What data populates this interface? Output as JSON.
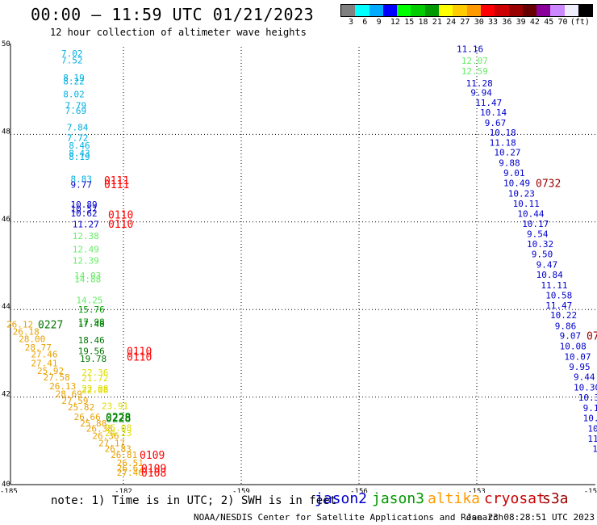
{
  "header": {
    "title": "00:00 – 11:59 UTC 01/21/2023",
    "subtitle": "12 hour collection of altimeter wave heights"
  },
  "legend": {
    "unit": "(ft)",
    "colors": [
      "#808080",
      "#00ffff",
      "#00aaff",
      "#0000ff",
      "#00ff00",
      "#00cc00",
      "#009900",
      "#ffff00",
      "#ffcc00",
      "#ff9900",
      "#ff0000",
      "#cc0000",
      "#990000",
      "#660000",
      "#880099",
      "#cc88ff",
      "#eeeeff",
      "#000000"
    ],
    "labels": [
      "3",
      "6",
      "9",
      "12",
      "15",
      "18",
      "21",
      "24",
      "27",
      "30",
      "33",
      "36",
      "39",
      "42",
      "45",
      "70"
    ]
  },
  "chart_data": {
    "type": "scatter",
    "title": "00:00 – 11:59 UTC 01/21/2023",
    "subtitle": "12 hour collection of altimeter wave heights",
    "x_axis": {
      "ticks": [
        "-185",
        "-182",
        "-159",
        "-156",
        "-153",
        "-15"
      ],
      "grid": true
    },
    "y_axis": {
      "ticks": [
        "50",
        "48",
        "46",
        "44",
        "42",
        "40"
      ],
      "range": [
        40,
        50
      ],
      "grid": true
    },
    "palette": {
      "cyan": "#00b0e0",
      "blue": "#0000cc",
      "lightgreen": "#66ee66",
      "green": "#009900",
      "darkgreen": "#007700",
      "yellow": "#dddd00",
      "orange": "#e8a000",
      "red": "#ff0000",
      "darkred": "#990000"
    },
    "tracks": [
      {
        "name": "left-north",
        "points": [
          {
            "lat": 49.85,
            "label": "7.02",
            "color": "cyan",
            "col": 0
          },
          {
            "lat": 49.7,
            "label": "7.52",
            "color": "cyan",
            "col": 0
          },
          {
            "lat": 49.3,
            "label": "8.19",
            "color": "cyan",
            "col": 1
          },
          {
            "lat": 49.22,
            "label": "8.22",
            "color": "cyan",
            "col": 1
          },
          {
            "lat": 48.92,
            "label": "8.02",
            "color": "cyan",
            "col": 1
          },
          {
            "lat": 48.66,
            "label": "7.79",
            "color": "cyan",
            "col": 2
          },
          {
            "lat": 48.54,
            "label": "7.69",
            "color": "cyan",
            "col": 2
          },
          {
            "lat": 48.16,
            "label": "7.84",
            "color": "cyan",
            "col": 3
          },
          {
            "lat": 47.92,
            "label": "7.72",
            "color": "cyan",
            "col": 3
          },
          {
            "lat": 47.75,
            "label": "8.46",
            "color": "cyan",
            "col": 4
          },
          {
            "lat": 47.57,
            "label": "8.43",
            "color": "cyan",
            "col": 4
          },
          {
            "lat": 47.49,
            "label": "8.19",
            "color": "cyan",
            "col": 4
          },
          {
            "lat": 46.98,
            "label": "8.83",
            "color": "cyan",
            "col": 5
          },
          {
            "lat": 46.85,
            "label": "9.77",
            "color": "blue",
            "col": 5
          },
          {
            "lat": 46.4,
            "label": "10.89",
            "color": "blue",
            "col": 5
          },
          {
            "lat": 46.3,
            "label": "10.57",
            "color": "blue",
            "col": 5
          },
          {
            "lat": 46.2,
            "label": "10.62",
            "color": "blue",
            "col": 5
          },
          {
            "lat": 45.95,
            "label": "11.27",
            "color": "blue",
            "col": 6
          },
          {
            "lat": 45.68,
            "label": "12.38",
            "color": "lightgreen",
            "col": 6
          },
          {
            "lat": 45.38,
            "label": "12.49",
            "color": "lightgreen",
            "col": 6
          },
          {
            "lat": 45.12,
            "label": "12.39",
            "color": "lightgreen",
            "col": 6
          },
          {
            "lat": 44.78,
            "label": "14.03",
            "color": "lightgreen",
            "col": 7
          },
          {
            "lat": 44.7,
            "label": "14.88",
            "color": "lightgreen",
            "col": 7
          },
          {
            "lat": 44.22,
            "label": "14.25",
            "color": "lightgreen",
            "col": 8
          },
          {
            "lat": 44.0,
            "label": "15.76",
            "color": "green",
            "col": 9
          },
          {
            "lat": 43.72,
            "label": "17.98",
            "color": "green",
            "col": 9
          },
          {
            "lat": 43.67,
            "label": "17.48",
            "color": "darkgreen",
            "col": 9
          },
          {
            "lat": 43.3,
            "label": "18.46",
            "color": "darkgreen",
            "col": 9
          },
          {
            "lat": 43.05,
            "label": "19.56",
            "color": "darkgreen",
            "col": 9
          },
          {
            "lat": 42.88,
            "label": "19.78",
            "color": "darkgreen",
            "col": 10
          },
          {
            "lat": 42.56,
            "label": "22.36",
            "color": "yellow",
            "col": 11
          },
          {
            "lat": 42.44,
            "label": "21.72",
            "color": "yellow",
            "col": 11
          },
          {
            "lat": 42.2,
            "label": "22.08",
            "color": "yellow",
            "col": 11
          },
          {
            "lat": 42.16,
            "label": "22.06",
            "color": "yellow",
            "col": 11
          }
        ]
      },
      {
        "name": "left-south",
        "points": [
          {
            "lat": 43.66,
            "label": "26.12",
            "color": "orange",
            "col": 0
          },
          {
            "lat": 43.5,
            "label": "26.18",
            "color": "orange",
            "col": 1
          },
          {
            "lat": 43.33,
            "label": "28.00",
            "color": "orange",
            "col": 2
          },
          {
            "lat": 43.14,
            "label": "28.77",
            "color": "orange",
            "col": 3
          },
          {
            "lat": 42.98,
            "label": "27.46",
            "color": "orange",
            "col": 4
          },
          {
            "lat": 42.78,
            "label": "27.41",
            "color": "orange",
            "col": 4
          },
          {
            "lat": 42.6,
            "label": "25.92",
            "color": "orange",
            "col": 5
          },
          {
            "lat": 42.45,
            "label": "27.58",
            "color": "orange",
            "col": 6
          },
          {
            "lat": 42.25,
            "label": "26.13",
            "color": "orange",
            "col": 7
          },
          {
            "lat": 42.08,
            "label": "28.69",
            "color": "orange",
            "col": 8
          },
          {
            "lat": 41.92,
            "label": "27.59",
            "color": "orange",
            "col": 9
          },
          {
            "lat": 41.77,
            "label": "25.82",
            "color": "orange",
            "col": 10
          },
          {
            "lat": 41.55,
            "label": "26.66",
            "color": "orange",
            "col": 11
          },
          {
            "lat": 41.4,
            "label": "25.88",
            "color": "orange",
            "col": 12
          },
          {
            "lat": 41.28,
            "label": "26.38",
            "color": "orange",
            "col": 13
          },
          {
            "lat": 41.12,
            "label": "26.36",
            "color": "orange",
            "col": 14
          },
          {
            "lat": 40.95,
            "label": "27.17",
            "color": "orange",
            "col": 15
          },
          {
            "lat": 40.82,
            "label": "26.83",
            "color": "orange",
            "col": 16
          },
          {
            "lat": 40.68,
            "label": "26.81",
            "color": "orange",
            "col": 17
          },
          {
            "lat": 40.5,
            "label": "26.51",
            "color": "orange",
            "col": 18
          },
          {
            "lat": 40.38,
            "label": "26.62",
            "color": "orange",
            "col": 18
          },
          {
            "lat": 40.28,
            "label": "27.46",
            "color": "orange",
            "col": 18
          }
        ]
      },
      {
        "name": "left-yellow-lower",
        "points": [
          {
            "lat": 41.8,
            "label": "23.91",
            "color": "yellow",
            "col": 0
          },
          {
            "lat": 41.3,
            "label": "25.08",
            "color": "yellow",
            "col": 1
          },
          {
            "lat": 41.18,
            "label": "24.23",
            "color": "yellow",
            "col": 1
          }
        ]
      },
      {
        "name": "right-track",
        "points": [
          {
            "lat": 49.95,
            "label": "11.16",
            "color": "blue",
            "col": 0
          },
          {
            "lat": 49.69,
            "label": "12.07",
            "color": "lightgreen",
            "col": 1
          },
          {
            "lat": 49.45,
            "label": "12.59",
            "color": "lightgreen",
            "col": 1
          },
          {
            "lat": 49.17,
            "label": "11.28",
            "color": "blue",
            "col": 2
          },
          {
            "lat": 48.96,
            "label": "9.94",
            "color": "blue",
            "col": 3
          },
          {
            "lat": 48.73,
            "label": "11.47",
            "color": "blue",
            "col": 4
          },
          {
            "lat": 48.51,
            "label": "10.14",
            "color": "blue",
            "col": 5
          },
          {
            "lat": 48.27,
            "label": "9.67",
            "color": "blue",
            "col": 6
          },
          {
            "lat": 48.04,
            "label": "10.18",
            "color": "blue",
            "col": 7
          },
          {
            "lat": 47.81,
            "label": "11.18",
            "color": "blue",
            "col": 7
          },
          {
            "lat": 47.59,
            "label": "10.27",
            "color": "blue",
            "col": 8
          },
          {
            "lat": 47.35,
            "label": "9.88",
            "color": "blue",
            "col": 9
          },
          {
            "lat": 47.12,
            "label": "9.01",
            "color": "blue",
            "col": 10
          },
          {
            "lat": 46.89,
            "label": "10.49",
            "color": "blue",
            "col": 10
          },
          {
            "lat": 46.65,
            "label": "10.23",
            "color": "blue",
            "col": 11
          },
          {
            "lat": 46.42,
            "label": "10.11",
            "color": "blue",
            "col": 12
          },
          {
            "lat": 46.19,
            "label": "10.44",
            "color": "blue",
            "col": 13
          },
          {
            "lat": 45.96,
            "label": "10.17",
            "color": "blue",
            "col": 14
          },
          {
            "lat": 45.73,
            "label": "9.54",
            "color": "blue",
            "col": 15
          },
          {
            "lat": 45.5,
            "label": "10.32",
            "color": "blue",
            "col": 15
          },
          {
            "lat": 45.27,
            "label": "9.50",
            "color": "blue",
            "col": 16
          },
          {
            "lat": 45.03,
            "label": "9.47",
            "color": "blue",
            "col": 17
          },
          {
            "lat": 44.8,
            "label": "10.84",
            "color": "blue",
            "col": 17
          },
          {
            "lat": 44.56,
            "label": "11.11",
            "color": "blue",
            "col": 18
          },
          {
            "lat": 44.33,
            "label": "10.58",
            "color": "blue",
            "col": 19
          },
          {
            "lat": 44.1,
            "label": "11.47",
            "color": "blue",
            "col": 19
          },
          {
            "lat": 43.87,
            "label": "10.22",
            "color": "blue",
            "col": 20
          },
          {
            "lat": 43.63,
            "label": "9.86",
            "color": "blue",
            "col": 21
          },
          {
            "lat": 43.4,
            "label": "9.07",
            "color": "blue",
            "col": 22
          },
          {
            "lat": 43.16,
            "label": "10.08",
            "color": "blue",
            "col": 22
          },
          {
            "lat": 42.92,
            "label": "10.07",
            "color": "blue",
            "col": 23
          },
          {
            "lat": 42.69,
            "label": "9.95",
            "color": "blue",
            "col": 24
          },
          {
            "lat": 42.46,
            "label": "9.44",
            "color": "blue",
            "col": 25
          },
          {
            "lat": 42.22,
            "label": "10.30",
            "color": "blue",
            "col": 25
          },
          {
            "lat": 41.99,
            "label": "10.37",
            "color": "blue",
            "col": 26
          },
          {
            "lat": 41.75,
            "label": "9.14",
            "color": "blue",
            "col": 27
          },
          {
            "lat": 41.52,
            "label": "10.5",
            "color": "blue",
            "col": 27
          },
          {
            "lat": 41.28,
            "label": "10.",
            "color": "blue",
            "col": 28
          },
          {
            "lat": 41.05,
            "label": "11",
            "color": "blue",
            "col": 28
          },
          {
            "lat": 40.82,
            "label": "1",
            "color": "blue",
            "col": 29
          }
        ]
      }
    ],
    "time_labels": [
      {
        "text": "0111",
        "color": "red",
        "lat": 46.96,
        "slot": "a"
      },
      {
        "text": "0111",
        "color": "red",
        "lat": 46.86,
        "slot": "a"
      },
      {
        "text": "0110",
        "color": "red",
        "lat": 46.17,
        "slot": "b"
      },
      {
        "text": "0110",
        "color": "red",
        "lat": 45.96,
        "slot": "b"
      },
      {
        "text": "0227",
        "color": "darkgreen",
        "lat": 43.66,
        "slot": "c"
      },
      {
        "text": "0110",
        "color": "red",
        "lat": 43.05,
        "slot": "d"
      },
      {
        "text": "0110",
        "color": "red",
        "lat": 42.92,
        "slot": "d"
      },
      {
        "text": "0228",
        "color": "green",
        "lat": 41.55,
        "slot": "e"
      },
      {
        "text": "0228",
        "color": "darkgreen",
        "lat": 41.52,
        "slot": "e"
      },
      {
        "text": "0109",
        "color": "red",
        "lat": 40.68,
        "slot": "f"
      },
      {
        "text": "0109",
        "color": "red",
        "lat": 40.38,
        "slot": "g"
      },
      {
        "text": "0108",
        "color": "red",
        "lat": 40.28,
        "slot": "g"
      },
      {
        "text": "0732",
        "color": "darkred",
        "lat": 46.89,
        "slot": "h"
      },
      {
        "text": "07",
        "color": "darkred",
        "lat": 43.4,
        "slot": "i"
      }
    ]
  },
  "footer": {
    "note": "note: 1) Time is in UTC; 2) SWH is in feet",
    "missions": [
      {
        "name": "jason2",
        "color": "#0000cc"
      },
      {
        "name": "jason3",
        "color": "#009900"
      },
      {
        "name": "altika",
        "color": "#ff9900"
      },
      {
        "name": "cryosat",
        "color": "#cc0000"
      },
      {
        "name": "s3a",
        "color": "#990000"
      }
    ],
    "credit": "NOAA/NESDIS Center for Satellite Applications and Research",
    "timestamp": "Jan 23 08:28:51 UTC 2023"
  }
}
